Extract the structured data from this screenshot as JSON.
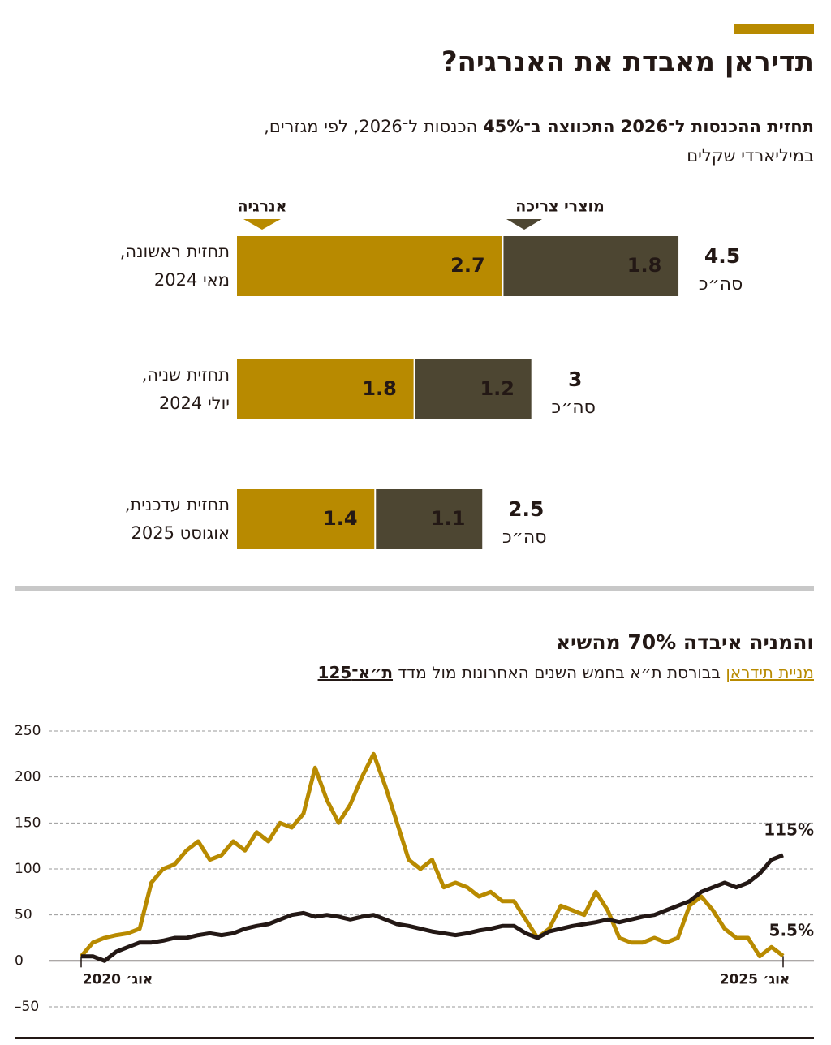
{
  "header": {
    "title": "תדיראן מאבדת את האנרגיה?"
  },
  "chart_data": [
    {
      "type": "bar",
      "orientation": "horizontal",
      "stacked": true,
      "subtitle": [
        "תחזית ההכנסות ל־2026 התכווצה ב־45%",
        "הכנסות ל־2026, לפי מגזרים,",
        "במיליארדי שקלים"
      ],
      "categories": [
        [
          "תחזית ראשונה,",
          "מאי 2024"
        ],
        [
          "תחזית שניה,",
          "יולי 2024"
        ],
        [
          "תחזית עדכנית,",
          "אוגוסט 2025"
        ]
      ],
      "series": [
        {
          "name": "אנרגיה",
          "color": "#b88a00",
          "values": [
            2.7,
            1.8,
            1.4
          ]
        },
        {
          "name": "מוצרי צריכה",
          "color": "#4d4632",
          "values": [
            1.8,
            1.2,
            1.1
          ]
        }
      ],
      "totals": [
        4.5,
        3,
        2.5
      ],
      "total_label": "סה״כ"
    },
    {
      "type": "line",
      "title": "והמניה איבדה 70% מהשיא",
      "subtitle": "בבורסת ת״א בחמש השנים האחרונות מול מדד",
      "x": [
        "2020-08",
        "2020-09",
        "2020-10",
        "2020-11",
        "2020-12",
        "2021-01",
        "2021-02",
        "2021-03",
        "2021-04",
        "2021-05",
        "2021-06",
        "2021-07",
        "2021-08",
        "2021-09",
        "2021-10",
        "2021-11",
        "2021-12",
        "2022-01",
        "2022-02",
        "2022-03",
        "2022-04",
        "2022-05",
        "2022-06",
        "2022-07",
        "2022-08",
        "2022-09",
        "2022-10",
        "2022-11",
        "2022-12",
        "2023-01",
        "2023-02",
        "2023-03",
        "2023-04",
        "2023-05",
        "2023-06",
        "2023-07",
        "2023-08",
        "2023-09",
        "2023-10",
        "2023-11",
        "2023-12",
        "2024-01",
        "2024-02",
        "2024-03",
        "2024-04",
        "2024-05",
        "2024-06",
        "2024-07",
        "2024-08",
        "2024-09",
        "2024-10",
        "2024-11",
        "2024-12",
        "2025-01",
        "2025-02",
        "2025-03",
        "2025-04",
        "2025-05",
        "2025-06",
        "2025-07",
        "2025-08"
      ],
      "series": [
        {
          "name": "מניית תידראן",
          "color": "#b88a00",
          "end_label": "5.5%",
          "values": [
            5,
            20,
            25,
            28,
            30,
            35,
            85,
            100,
            105,
            120,
            130,
            110,
            115,
            130,
            120,
            140,
            130,
            150,
            145,
            160,
            210,
            175,
            150,
            170,
            200,
            225,
            190,
            150,
            110,
            100,
            110,
            80,
            85,
            80,
            70,
            75,
            65,
            65,
            45,
            25,
            35,
            60,
            55,
            50,
            75,
            55,
            25,
            20,
            20,
            25,
            20,
            25,
            60,
            70,
            55,
            35,
            25,
            25,
            5,
            15,
            5.5
          ]
        },
        {
          "name": "ת״א־125",
          "color": "#231815",
          "end_label": "115%",
          "values": [
            5,
            5,
            0,
            10,
            15,
            20,
            20,
            22,
            25,
            25,
            28,
            30,
            28,
            30,
            35,
            38,
            40,
            45,
            50,
            52,
            48,
            50,
            48,
            45,
            48,
            50,
            45,
            40,
            38,
            35,
            32,
            30,
            28,
            30,
            33,
            35,
            38,
            38,
            30,
            25,
            32,
            35,
            38,
            40,
            42,
            45,
            42,
            45,
            48,
            50,
            55,
            60,
            65,
            75,
            80,
            85,
            80,
            85,
            95,
            110,
            115
          ]
        }
      ],
      "xlim": [
        "2020-08",
        "2025-08"
      ],
      "xticks": [
        {
          "value": "2020-08",
          "label": "אוג׳ 2020"
        },
        {
          "value": "2025-08",
          "label": "אוג׳ 2025"
        }
      ],
      "ylim": [
        -50,
        250
      ],
      "yticks": [
        {
          "value": -50,
          "label": "–50"
        },
        0,
        50,
        100,
        150,
        200,
        250
      ],
      "grid": true
    }
  ]
}
